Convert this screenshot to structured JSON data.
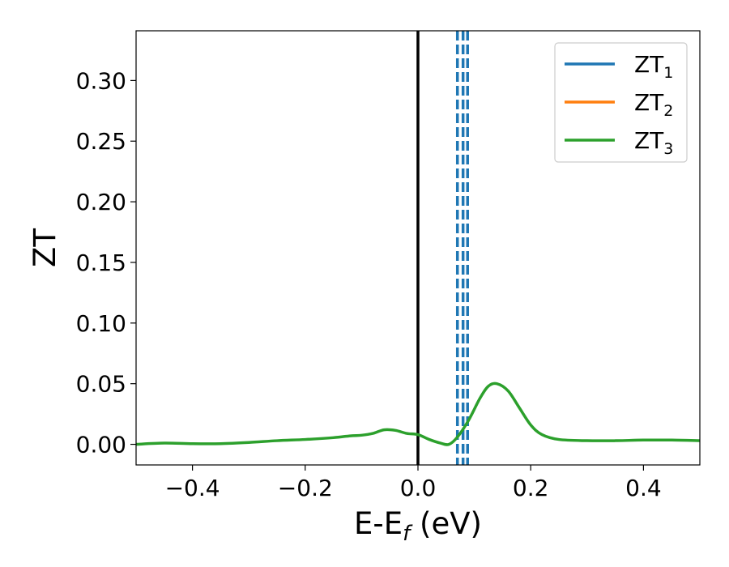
{
  "chart_data": {
    "type": "line",
    "title": "",
    "xlabel": "E-E",
    "xlabel_sub": "f",
    "xlabel_unit": " (eV)",
    "ylabel": "ZT",
    "xlim": [
      -0.5,
      0.5
    ],
    "ylim": [
      -0.017,
      0.341
    ],
    "x_ticks": [
      -0.4,
      -0.2,
      0.0,
      0.2,
      0.4
    ],
    "x_tick_labels": [
      "−0.4",
      "−0.2",
      "0.0",
      "0.2",
      "0.4"
    ],
    "y_ticks": [
      0.0,
      0.05,
      0.1,
      0.15,
      0.2,
      0.25,
      0.3
    ],
    "y_tick_labels": [
      "0.00",
      "0.05",
      "0.10",
      "0.15",
      "0.20",
      "0.25",
      "0.30"
    ],
    "grid": false,
    "legend_position": "top-right",
    "series": [
      {
        "name": "ZT",
        "name_sub": "1",
        "color": "#1f77b4",
        "x": [],
        "y": []
      },
      {
        "name": "ZT",
        "name_sub": "2",
        "color": "#ff7f0e",
        "x": [],
        "y": []
      },
      {
        "name": "ZT",
        "name_sub": "3",
        "color": "#2ca02c",
        "x": [
          -0.5,
          -0.45,
          -0.4,
          -0.35,
          -0.3,
          -0.25,
          -0.2,
          -0.15,
          -0.12,
          -0.1,
          -0.08,
          -0.06,
          -0.04,
          -0.02,
          0.0,
          0.02,
          0.04,
          0.055,
          0.07,
          0.09,
          0.11,
          0.125,
          0.14,
          0.16,
          0.18,
          0.2,
          0.22,
          0.25,
          0.3,
          0.35,
          0.4,
          0.45,
          0.5
        ],
        "y": [
          0.0,
          0.001,
          0.0005,
          0.0005,
          0.0015,
          0.003,
          0.004,
          0.0055,
          0.007,
          0.0075,
          0.009,
          0.012,
          0.0115,
          0.009,
          0.008,
          0.004,
          0.001,
          0.0,
          0.006,
          0.02,
          0.038,
          0.048,
          0.05,
          0.044,
          0.03,
          0.016,
          0.008,
          0.004,
          0.003,
          0.003,
          0.0035,
          0.0035,
          0.003
        ]
      }
    ],
    "vertical_lines": [
      {
        "x": 0.0,
        "color": "#000000",
        "style": "solid"
      },
      {
        "x": 0.07,
        "color": "#1f77b4",
        "style": "dashed"
      },
      {
        "x": 0.08,
        "color": "#1f77b4",
        "style": "dashed"
      },
      {
        "x": 0.088,
        "color": "#1f77b4",
        "style": "dashed"
      }
    ]
  }
}
